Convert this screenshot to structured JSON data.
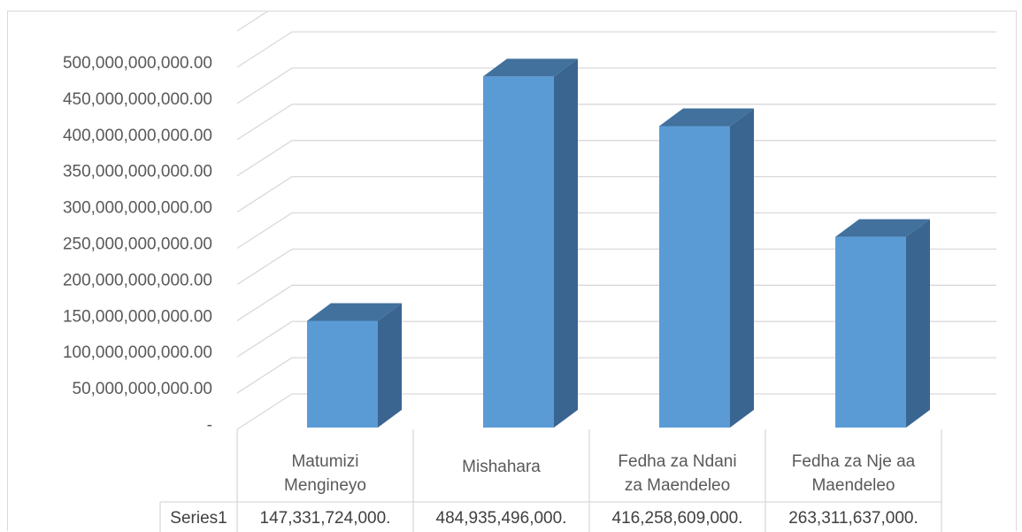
{
  "chart_data": {
    "type": "bar",
    "style": "3d-column",
    "categories": [
      [
        "Matumizi",
        "Mengineyo"
      ],
      [
        "Mishahara"
      ],
      [
        "Fedha za Ndani",
        "za Maendeleo"
      ],
      [
        "Fedha za Nje aa",
        "Maendeleo"
      ]
    ],
    "series": [
      {
        "name": "Series1",
        "values": [
          147331724000,
          484935496000,
          416258609000,
          263311637000
        ],
        "display_values": [
          "147,331,724,000.",
          "484,935,496,000.",
          "416,258,609,000.",
          "263,311,637,000."
        ]
      }
    ],
    "y_ticks": [
      {
        "value": 0,
        "label": "-"
      },
      {
        "value": 50000000000,
        "label": "50,000,000,000.00"
      },
      {
        "value": 100000000000,
        "label": "100,000,000,000.00"
      },
      {
        "value": 150000000000,
        "label": "150,000,000,000.00"
      },
      {
        "value": 200000000000,
        "label": "200,000,000,000.00"
      },
      {
        "value": 250000000000,
        "label": "250,000,000,000.00"
      },
      {
        "value": 300000000000,
        "label": "300,000,000,000.00"
      },
      {
        "value": 350000000000,
        "label": "350,000,000,000.00"
      },
      {
        "value": 400000000000,
        "label": "400,000,000,000.00"
      },
      {
        "value": 450000000000,
        "label": "450,000,000,000.00"
      },
      {
        "value": 500000000000,
        "label": "500,000,000,000.00"
      }
    ],
    "ylim": [
      0,
      500000000000
    ],
    "grid": true,
    "data_table": true,
    "colors": {
      "front": "#5b9bd5",
      "top": "#41719c",
      "side": "#3a6591",
      "grid": "#d9d9d9"
    }
  }
}
